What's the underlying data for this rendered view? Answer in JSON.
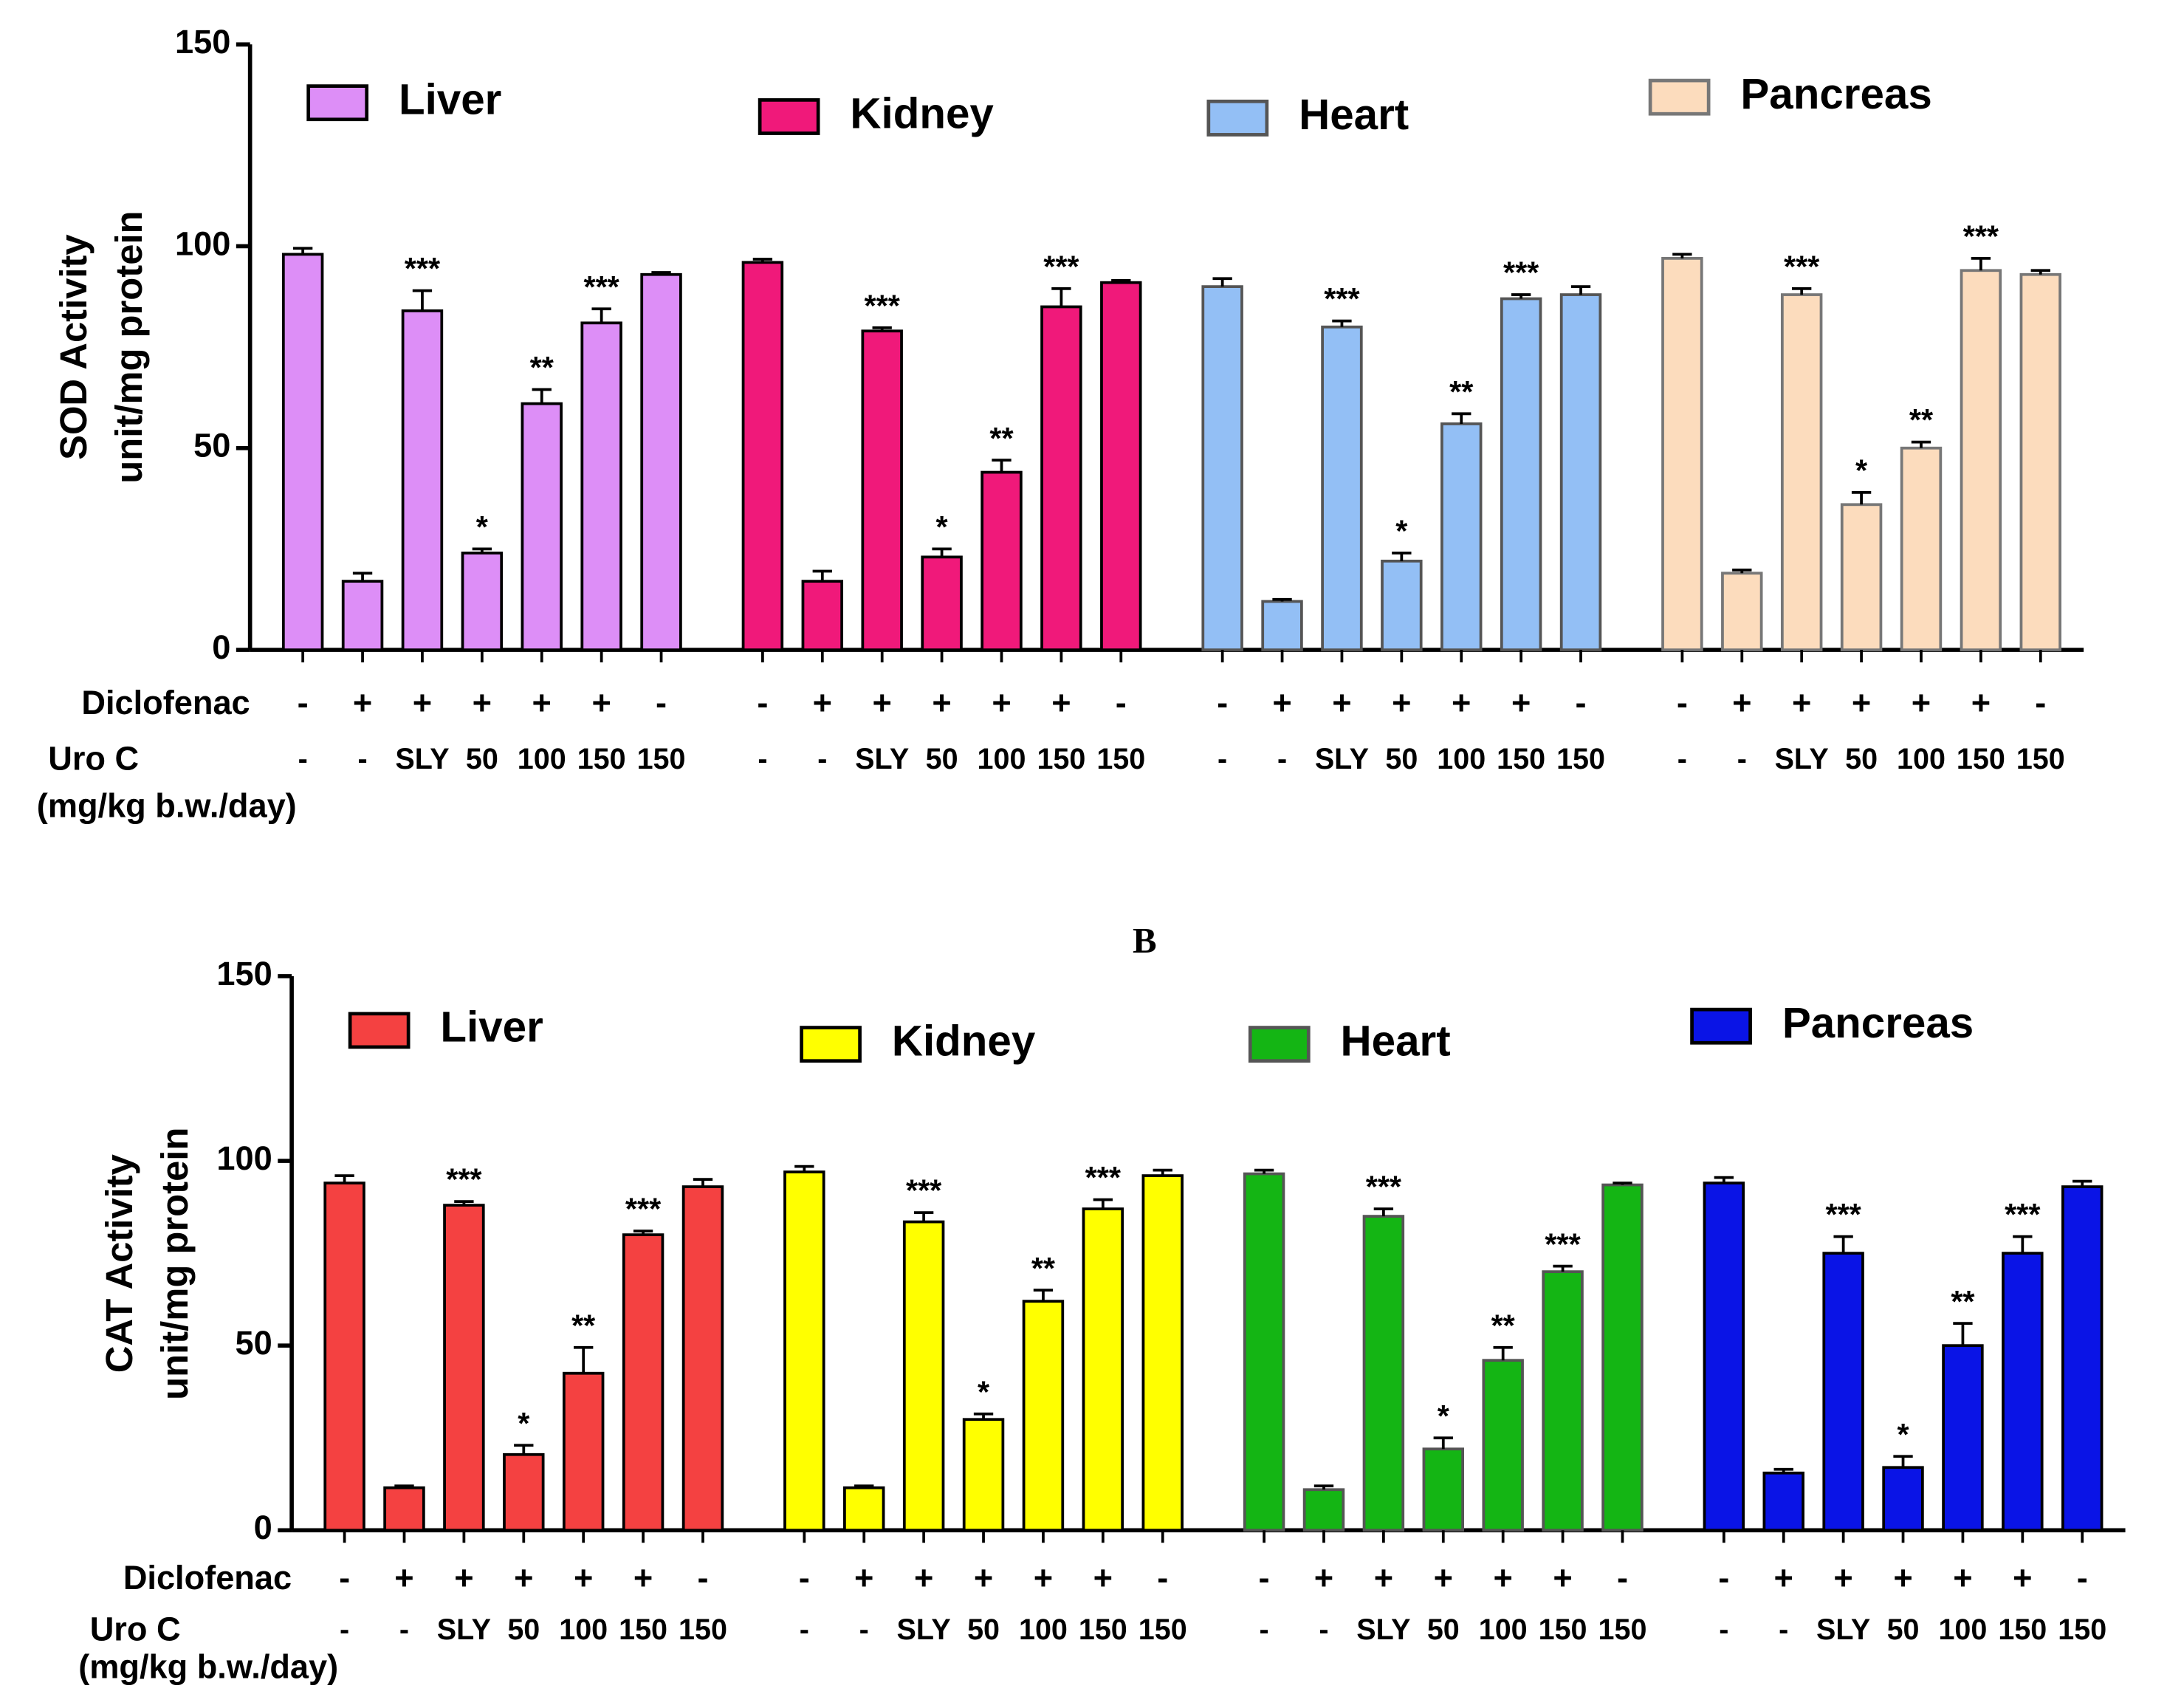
{
  "chart_data": [
    {
      "type": "bar",
      "y_label": [
        "SOD Activity",
        "unit/mg protein"
      ],
      "ylim": [
        0,
        150
      ],
      "yticks": [
        0,
        50,
        100,
        150
      ],
      "rows": [
        {
          "label": "Diclofenac",
          "values": [
            "-",
            "+",
            "+",
            "+",
            "+",
            "+",
            "-"
          ]
        },
        {
          "label": "Uro C",
          "sublabel": "(mg/kg b.w./day)",
          "values": [
            "-",
            "-",
            "SLY",
            "50",
            "100",
            "150",
            "150"
          ]
        }
      ],
      "series": [
        {
          "name": "Liver",
          "color": "#dd8ef7",
          "values": [
            98,
            17,
            84,
            24,
            61,
            81,
            93
          ],
          "errors": [
            1.5,
            2,
            5,
            1,
            3.5,
            3.5,
            0.5
          ],
          "annotations": [
            null,
            null,
            "***",
            "*",
            "**",
            "***",
            null
          ]
        },
        {
          "name": "Kidney",
          "color": "#f0197a",
          "values": [
            96,
            17,
            79,
            23,
            44,
            85,
            91
          ],
          "errors": [
            0.8,
            2.5,
            0.8,
            2,
            3,
            4.5,
            0.5
          ],
          "annotations": [
            null,
            null,
            "***",
            "*",
            "**",
            "***",
            null
          ]
        },
        {
          "name": "Heart",
          "color": "#93bff5",
          "values": [
            90,
            12,
            80,
            22,
            56,
            87,
            88
          ],
          "errors": [
            2,
            0.5,
            1.5,
            2,
            2.5,
            1,
            2
          ],
          "annotations": [
            null,
            null,
            "***",
            "*",
            "**",
            "***",
            null
          ]
        },
        {
          "name": "Pancreas",
          "color": "#fcdcbd",
          "values": [
            97,
            19,
            88,
            36,
            50,
            94,
            93
          ],
          "errors": [
            1,
            0.8,
            1.5,
            3,
            1.5,
            3,
            1
          ],
          "annotations": [
            null,
            null,
            "***",
            "*",
            "**",
            "***",
            null
          ]
        }
      ]
    },
    {
      "type": "bar",
      "title": "B",
      "y_label": [
        "CAT Activity",
        "unit/mg protein"
      ],
      "ylim": [
        0,
        150
      ],
      "yticks": [
        0,
        50,
        100,
        150
      ],
      "rows": [
        {
          "label": "Diclofenac",
          "values": [
            "-",
            "+",
            "+",
            "+",
            "+",
            "+",
            "-"
          ]
        },
        {
          "label": "Uro C",
          "sublabel": "(mg/kg b.w./day)",
          "values": [
            "-",
            "-",
            "SLY",
            "50",
            "100",
            "150",
            "150"
          ]
        }
      ],
      "series": [
        {
          "name": "Liver",
          "color": "#f44141",
          "values": [
            94,
            11.5,
            88,
            20.5,
            42.5,
            80,
            93
          ],
          "errors": [
            2,
            0.5,
            1,
            2.5,
            7,
            1,
            2
          ],
          "annotations": [
            null,
            null,
            "***",
            "*",
            "**",
            "***",
            null
          ]
        },
        {
          "name": "Kidney",
          "color": "#ffff00",
          "values": [
            97,
            11.5,
            83.5,
            30,
            62,
            87,
            96
          ],
          "errors": [
            1.5,
            0.5,
            2.5,
            1.5,
            3,
            2.5,
            1.5
          ],
          "annotations": [
            null,
            null,
            "***",
            "*",
            "**",
            "***",
            null
          ]
        },
        {
          "name": "Heart",
          "color": "#14b514",
          "values": [
            96.5,
            11,
            85,
            22,
            46,
            70,
            93.5
          ],
          "errors": [
            1,
            1,
            2,
            3,
            3.5,
            1.5,
            0.5
          ],
          "annotations": [
            null,
            null,
            "***",
            "*",
            "**",
            "***",
            null
          ]
        },
        {
          "name": "Pancreas",
          "color": "#0a14e6",
          "values": [
            94,
            15.5,
            75,
            17,
            50,
            75,
            93
          ],
          "errors": [
            1.5,
            1,
            4.5,
            3,
            6,
            4.5,
            1.5
          ],
          "annotations": [
            null,
            null,
            "***",
            "*",
            "**",
            "***",
            null
          ]
        }
      ]
    }
  ]
}
